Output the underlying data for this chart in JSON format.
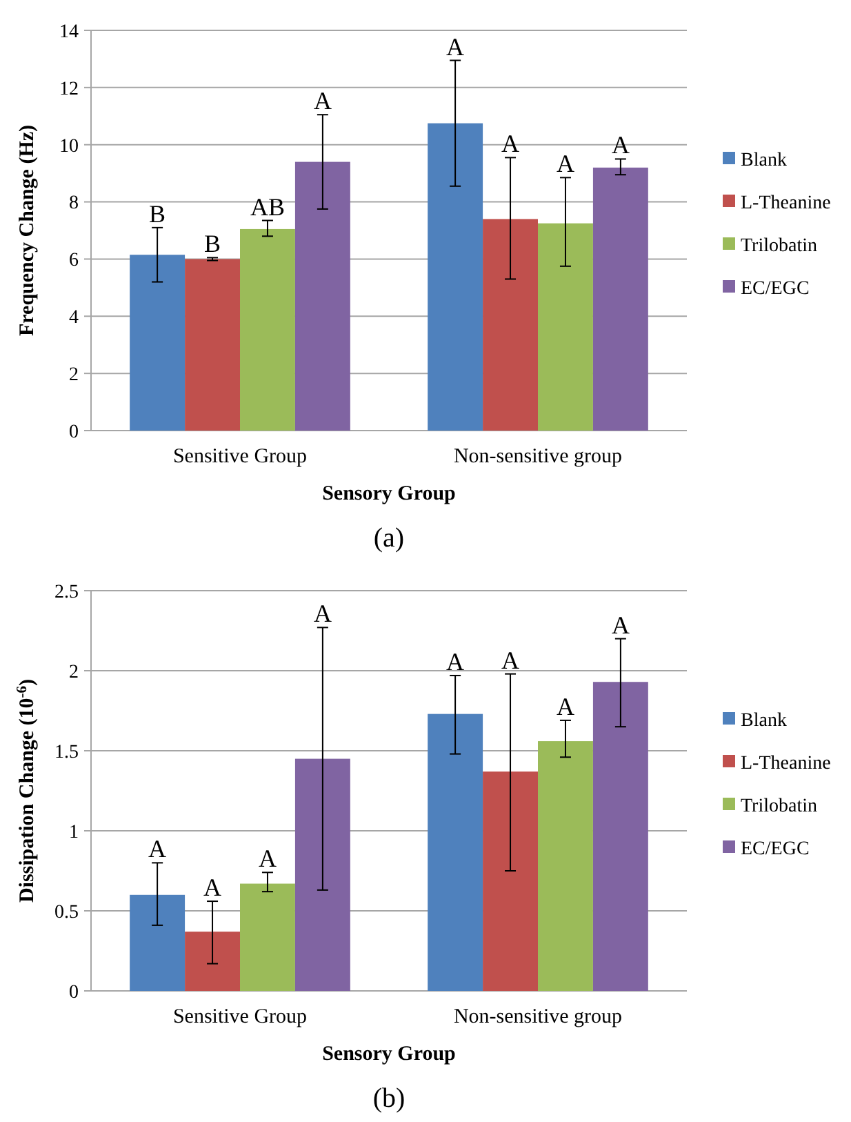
{
  "chart_data": [
    {
      "type": "bar",
      "categories": [
        "Sensitive Group",
        "Non-sensitive group"
      ],
      "xlabel": "Sensory Group",
      "ylabel": "Frequency  Change  (Hz)",
      "ylim": [
        0,
        14
      ],
      "yticks": [
        0,
        2,
        4,
        6,
        8,
        10,
        12,
        14
      ],
      "grid": "y",
      "legend": "right",
      "series": [
        {
          "name": "Blank",
          "color": "#4f81bd",
          "values": [
            6.15,
            10.75
          ],
          "errors": [
            [
              5.2,
              7.1
            ],
            [
              8.55,
              12.95
            ]
          ]
        },
        {
          "name": "L-Theanine",
          "color": "#c0504d",
          "values": [
            6.0,
            7.4
          ],
          "errors": [
            [
              5.95,
              6.05
            ],
            [
              5.3,
              9.55
            ]
          ]
        },
        {
          "name": "Trilobatin",
          "color": "#9bbb59",
          "values": [
            7.05,
            7.25
          ],
          "errors": [
            [
              6.8,
              7.35
            ],
            [
              5.75,
              8.85
            ]
          ]
        },
        {
          "name": "EC/EGC",
          "color": "#8064a2",
          "values": [
            9.4,
            9.2
          ],
          "errors": [
            [
              7.75,
              11.05
            ],
            [
              8.95,
              9.5
            ]
          ]
        }
      ],
      "annotations": [
        "B",
        "B",
        "AB",
        "A",
        "A",
        "A",
        "A",
        "A",
        "(a)"
      ]
    },
    {
      "type": "bar",
      "categories": [
        "Sensitive Group",
        "Non-sensitive group"
      ],
      "xlabel": "Sensory Group",
      "ylabel": "Dissipation Change (10$^{-6}$)",
      "ylim": [
        0,
        2.5
      ],
      "yticks": [
        0,
        0.5,
        1,
        1.5,
        2,
        2.5
      ],
      "grid": "y",
      "legend": "right",
      "series": [
        {
          "name": "Blank",
          "color": "#4f81bd",
          "values": [
            0.6,
            1.73
          ],
          "errors": [
            [
              0.41,
              0.8
            ],
            [
              1.48,
              1.97
            ]
          ]
        },
        {
          "name": "L-Theanine",
          "color": "#c0504d",
          "values": [
            0.37,
            1.37
          ],
          "errors": [
            [
              0.17,
              0.56
            ],
            [
              0.75,
              1.98
            ]
          ]
        },
        {
          "name": "Trilobatin",
          "color": "#9bbb59",
          "values": [
            0.67,
            1.56
          ],
          "errors": [
            [
              0.62,
              0.74
            ],
            [
              1.46,
              1.69
            ]
          ]
        },
        {
          "name": "EC/EGC",
          "color": "#8064a2",
          "values": [
            1.45,
            1.93
          ],
          "errors": [
            [
              0.63,
              2.27
            ],
            [
              1.65,
              2.2
            ]
          ]
        }
      ],
      "annotations": [
        "A",
        "A",
        "A",
        "A",
        "A",
        "A",
        "A",
        "A",
        "(b)"
      ]
    }
  ]
}
